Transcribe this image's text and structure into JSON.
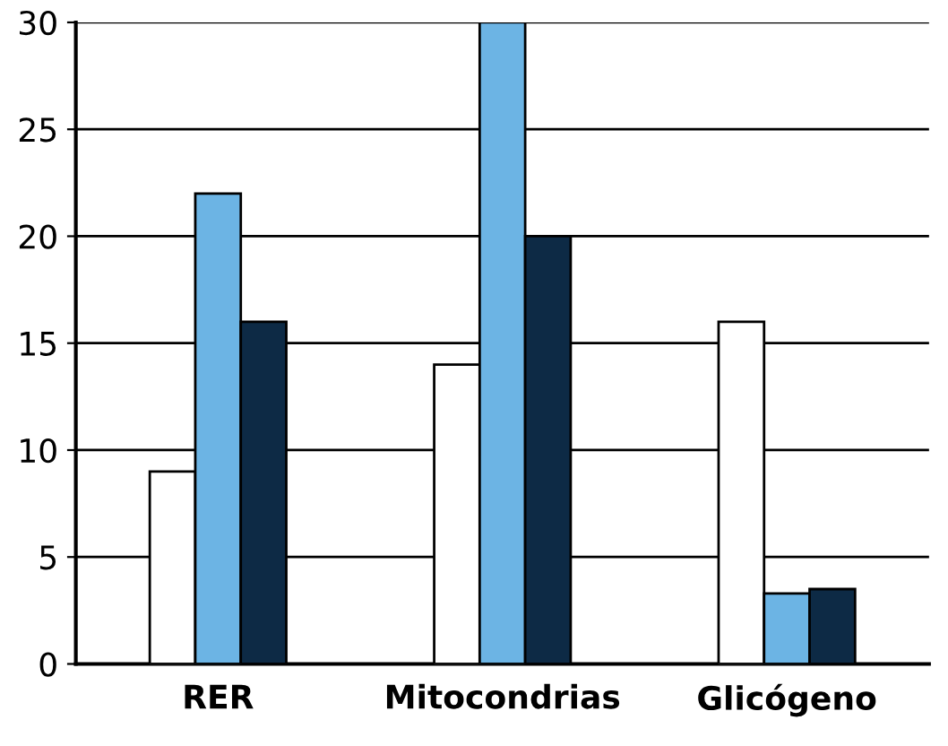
{
  "chart_data": {
    "type": "bar",
    "categories": [
      "RER",
      "Mitocondrias",
      "Glicógeno"
    ],
    "series": [
      {
        "color": "#ffffff",
        "values": [
          9,
          14,
          16
        ]
      },
      {
        "color": "#6cb4e4",
        "values": [
          22,
          30,
          3.3
        ]
      },
      {
        "color": "#0d2a45",
        "values": [
          16,
          20,
          3.5
        ]
      }
    ],
    "ylim": [
      0,
      30
    ],
    "yticks": [
      0,
      5,
      10,
      15,
      20,
      25,
      30
    ],
    "grid": "y"
  }
}
